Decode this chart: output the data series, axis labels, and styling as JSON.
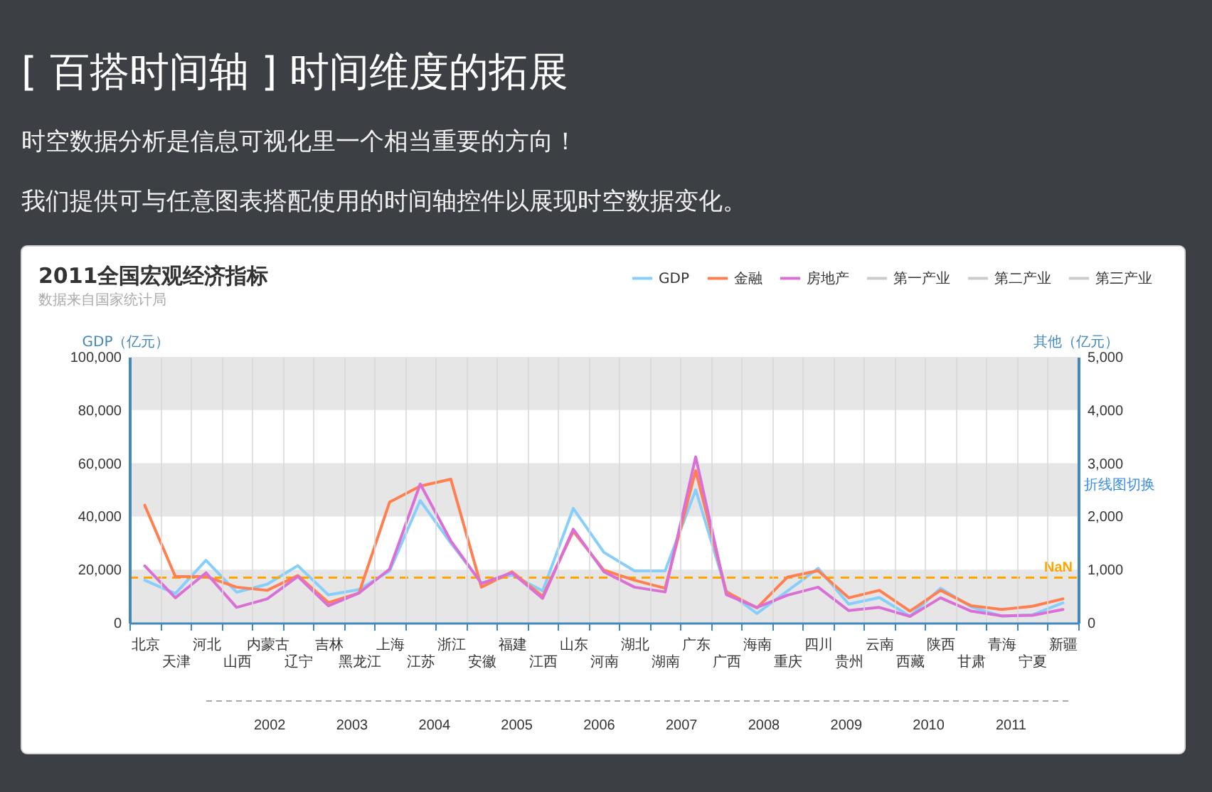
{
  "chart_data": {
    "type": "line",
    "title": "2011全国宏观经济指标",
    "subtitle": "数据来自国家统计局",
    "ylabel": "GDP（亿元）",
    "y2label": "其他（亿元）",
    "categories": [
      "北京",
      "天津",
      "河北",
      "山西",
      "内蒙古",
      "辽宁",
      "吉林",
      "黑龙江",
      "上海",
      "江苏",
      "浙江",
      "安徽",
      "福建",
      "江西",
      "山东",
      "河南",
      "湖北",
      "湖南",
      "广东",
      "广西",
      "海南",
      "重庆",
      "四川",
      "贵州",
      "云南",
      "西藏",
      "陕西",
      "甘肃",
      "青海",
      "宁夏",
      "新疆"
    ],
    "series": [
      {
        "name": "GDP",
        "color": "#87cefa",
        "values": [
          16000,
          11000,
          23500,
          11500,
          14500,
          21500,
          10500,
          12500,
          19500,
          46000,
          30000,
          15000,
          18000,
          12000,
          43000,
          26500,
          19500,
          19500,
          50000,
          12000,
          3500,
          12000,
          20500,
          7000,
          9500,
          2500,
          13000,
          6000,
          2500,
          3000,
          7500
        ]
      },
      {
        "name": "金融",
        "color": "#ff7f50",
        "axis": "y2",
        "values": [
          2210,
          870,
          870,
          670,
          610,
          890,
          380,
          560,
          2270,
          2570,
          2700,
          670,
          960,
          500,
          1720,
          990,
          800,
          650,
          2860,
          580,
          280,
          860,
          980,
          470,
          610,
          220,
          610,
          320,
          250,
          310,
          450
        ]
      },
      {
        "name": "房地产",
        "color": "#da70d6",
        "axis": "y2",
        "values": [
          1070,
          470,
          940,
          290,
          450,
          870,
          320,
          560,
          1010,
          2610,
          1540,
          740,
          940,
          460,
          1760,
          960,
          670,
          580,
          3120,
          530,
          290,
          520,
          670,
          230,
          290,
          120,
          470,
          220,
          130,
          140,
          250
        ]
      },
      {
        "name": "第一产业",
        "color": "#cccccc",
        "values": [
          null,
          null,
          null,
          null,
          null,
          null,
          null,
          null,
          null,
          null,
          null,
          null,
          null,
          null,
          null,
          null,
          null,
          null,
          null,
          null,
          null,
          null,
          null,
          null,
          null,
          null,
          null,
          null,
          null,
          null,
          null
        ]
      },
      {
        "name": "第二产业",
        "color": "#cccccc",
        "values": [
          null,
          null,
          null,
          null,
          null,
          null,
          null,
          null,
          null,
          null,
          null,
          null,
          null,
          null,
          null,
          null,
          null,
          null,
          null,
          null,
          null,
          null,
          null,
          null,
          null,
          null,
          null,
          null,
          null,
          null,
          null
        ]
      },
      {
        "name": "第三产业",
        "color": "#cccccc",
        "values": [
          null,
          null,
          null,
          null,
          null,
          null,
          null,
          null,
          null,
          null,
          null,
          null,
          null,
          null,
          null,
          null,
          null,
          null,
          null,
          null,
          null,
          null,
          null,
          null,
          null,
          null,
          null,
          null,
          null,
          null,
          null
        ]
      }
    ],
    "ylim": [
      0,
      100000
    ],
    "yticks": [
      0,
      {
        "value": 20000,
        "label": "20,000"
      },
      {
        "value": 40000,
        "label": "40,000"
      },
      {
        "value": 60000,
        "label": "60,000"
      },
      {
        "value": 80000,
        "label": "80,000"
      },
      {
        "value": 100000,
        "label": "100,000"
      }
    ],
    "y2lim": [
      0,
      5000
    ],
    "y2ticks": [
      0,
      {
        "value": 1000,
        "label": "1,000"
      },
      {
        "value": 2000,
        "label": "2,000"
      },
      {
        "value": 3000,
        "label": "3,000"
      },
      {
        "value": 4000,
        "label": "4,000"
      },
      {
        "value": 5000,
        "label": "5,000"
      }
    ],
    "ref_lines": [
      {
        "axis": "y",
        "value": 17000,
        "label": "NaN",
        "color": "#ffa500",
        "line_style": "dashed"
      }
    ],
    "bands": [
      {
        "axis": "y",
        "from": 0,
        "to": 20000,
        "color": "#e6e6e6"
      },
      {
        "axis": "y",
        "from": 40000,
        "to": 60000,
        "color": "#e6e6e6"
      },
      {
        "axis": "y",
        "from": 80000,
        "to": 100000,
        "color": "#e6e6e6"
      }
    ],
    "grid": "x",
    "legend": "top right",
    "annotations": [
      "[ 百搭时间轴 ] 时间维度的拓展",
      "时空数据分析是信息可视化里一个相当重要的方向！",
      "我们提供可与任意图表搭配使用的时间轴控件以展现时空数据变化。",
      "折线图切换",
      "2002",
      "2003",
      "2004",
      "2005",
      "2006",
      "2007",
      "2008",
      "2009",
      "2010",
      "2011"
    ]
  }
}
